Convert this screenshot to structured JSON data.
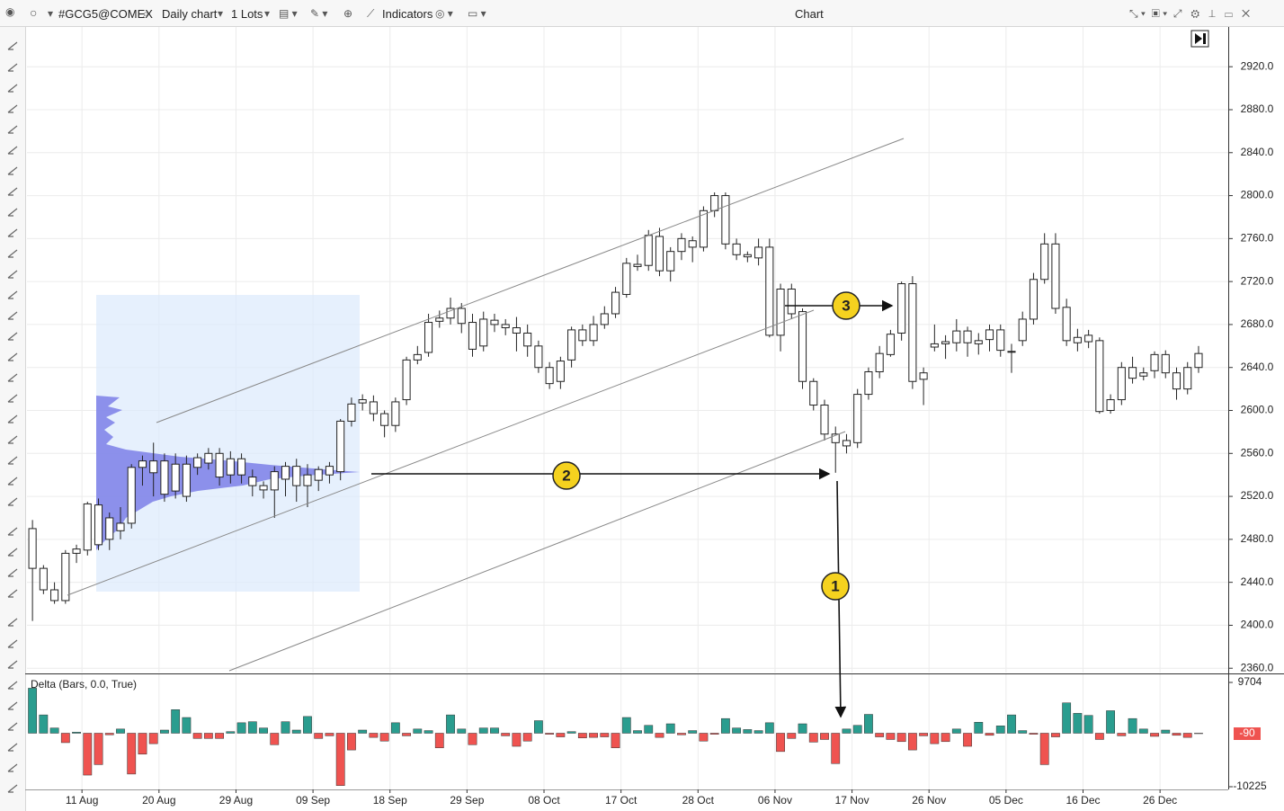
{
  "toolbar": {
    "symbol": "#GCG5@COMEX",
    "timeframe": "Daily chart",
    "lots": "1 Lots",
    "indicators": "Indicators",
    "window_title": "Chart"
  },
  "markers": [
    "1",
    "2",
    "3"
  ],
  "chart_data": [
    {
      "type": "candlestick",
      "open": [
        2490,
        2453,
        2433,
        2423,
        2467,
        2470,
        2512,
        2480,
        2495,
        2495,
        2547,
        2553,
        2553,
        2525,
        2550,
        2547,
        2551,
        2560,
        2540,
        2555,
        2538,
        2530,
        2526,
        2536,
        2548,
        2530,
        2535,
        2540,
        2543,
        2590,
        2607,
        2608,
        2597,
        2586,
        2610,
        2647,
        2654,
        2683,
        2686,
        2695,
        2682,
        2660,
        2684,
        2680,
        2677,
        2672,
        2660,
        2640,
        2627,
        2647,
        2675,
        2665,
        2680,
        2690,
        2708,
        2736,
        2735,
        2762,
        2730,
        2748,
        2758,
        2752,
        2786,
        2800,
        2755,
        2745,
        2742,
        2752,
        2670,
        2713,
        2692,
        2627,
        2605,
        2578,
        2567,
        2570,
        2615,
        2636,
        2652,
        2672,
        2718,
        2629,
        2659,
        2662,
        2663,
        2674,
        2662,
        2666,
        2675,
        2655,
        2665,
        2685,
        2722,
        2755,
        2696,
        2668,
        2664,
        2665,
        2600,
        2610,
        2640,
        2632,
        2637,
        2652,
        2635,
        2620,
        2640
      ],
      "high": [
        2498,
        2456,
        2440,
        2470,
        2475,
        2515,
        2518,
        2505,
        2510,
        2550,
        2558,
        2570,
        2560,
        2560,
        2558,
        2560,
        2565,
        2565,
        2562,
        2560,
        2545,
        2534,
        2548,
        2552,
        2555,
        2550,
        2548,
        2552,
        2592,
        2612,
        2615,
        2614,
        2600,
        2612,
        2650,
        2660,
        2690,
        2693,
        2705,
        2700,
        2690,
        2692,
        2690,
        2685,
        2687,
        2680,
        2665,
        2645,
        2650,
        2678,
        2680,
        2688,
        2697,
        2715,
        2742,
        2745,
        2768,
        2770,
        2752,
        2765,
        2762,
        2790,
        2803,
        2803,
        2760,
        2748,
        2760,
        2760,
        2718,
        2718,
        2695,
        2630,
        2610,
        2585,
        2578,
        2620,
        2640,
        2660,
        2675,
        2720,
        2725,
        2640,
        2680,
        2670,
        2685,
        2678,
        2672,
        2680,
        2680,
        2662,
        2692,
        2728,
        2765,
        2765,
        2704,
        2676,
        2675,
        2668,
        2615,
        2645,
        2650,
        2640,
        2655,
        2656,
        2640,
        2645,
        2660
      ],
      "low": [
        2404,
        2429,
        2420,
        2420,
        2458,
        2465,
        2470,
        2470,
        2480,
        2490,
        2530,
        2520,
        2515,
        2518,
        2515,
        2540,
        2545,
        2530,
        2532,
        2532,
        2520,
        2518,
        2500,
        2520,
        2515,
        2510,
        2525,
        2532,
        2535,
        2585,
        2600,
        2590,
        2575,
        2580,
        2605,
        2643,
        2650,
        2677,
        2680,
        2672,
        2650,
        2655,
        2673,
        2670,
        2655,
        2650,
        2635,
        2620,
        2620,
        2640,
        2660,
        2660,
        2676,
        2686,
        2705,
        2730,
        2730,
        2725,
        2720,
        2740,
        2738,
        2748,
        2780,
        2750,
        2740,
        2738,
        2735,
        2668,
        2655,
        2685,
        2620,
        2600,
        2572,
        2542,
        2560,
        2565,
        2610,
        2630,
        2650,
        2665,
        2620,
        2605,
        2655,
        2648,
        2655,
        2650,
        2652,
        2655,
        2650,
        2635,
        2660,
        2680,
        2718,
        2690,
        2660,
        2655,
        2658,
        2597,
        2597,
        2605,
        2625,
        2628,
        2630,
        2630,
        2610,
        2615,
        2635
      ],
      "close": [
        2453,
        2433,
        2423,
        2467,
        2471,
        2513,
        2475,
        2500,
        2488,
        2547,
        2553,
        2542,
        2522,
        2550,
        2520,
        2556,
        2560,
        2538,
        2555,
        2540,
        2530,
        2526,
        2543,
        2548,
        2530,
        2540,
        2545,
        2548,
        2590,
        2606,
        2610,
        2597,
        2586,
        2608,
        2647,
        2652,
        2682,
        2686,
        2695,
        2681,
        2657,
        2685,
        2680,
        2677,
        2672,
        2660,
        2640,
        2625,
        2646,
        2675,
        2665,
        2680,
        2690,
        2710,
        2737,
        2734,
        2763,
        2730,
        2748,
        2760,
        2752,
        2786,
        2800,
        2755,
        2745,
        2743,
        2752,
        2670,
        2713,
        2690,
        2627,
        2605,
        2578,
        2570,
        2572,
        2615,
        2636,
        2653,
        2671,
        2718,
        2627,
        2635,
        2662,
        2664,
        2674,
        2663,
        2665,
        2675,
        2656,
        2655,
        2685,
        2722,
        2755,
        2695,
        2665,
        2663,
        2670,
        2599,
        2610,
        2640,
        2630,
        2635,
        2652,
        2635,
        2620,
        2640,
        2653
      ],
      "color": "#ffffff",
      "edge_color": "#222222",
      "xlim": [
        -0.5,
        108.7
      ],
      "xticks": [
        {
          "value": 4.5,
          "label": "11 Aug"
        },
        {
          "value": 11.5,
          "label": "20 Aug"
        },
        {
          "value": 18.5,
          "label": "29 Aug"
        },
        {
          "value": 25.5,
          "label": "09 Sep"
        },
        {
          "value": 32.5,
          "label": "18 Sep"
        },
        {
          "value": 39.5,
          "label": "29 Sep"
        },
        {
          "value": 46.5,
          "label": "08 Oct"
        },
        {
          "value": 53.5,
          "label": "17 Oct"
        },
        {
          "value": 60.5,
          "label": "28 Oct"
        },
        {
          "value": 67.5,
          "label": "06 Nov"
        },
        {
          "value": 74.5,
          "label": "17 Nov"
        },
        {
          "value": 81.5,
          "label": "26 Nov"
        },
        {
          "value": 88.5,
          "label": "05 Dec"
        },
        {
          "value": 95.5,
          "label": "16 Dec"
        },
        {
          "value": 102.5,
          "label": "26 Dec"
        }
      ],
      "ylim": [
        2356,
        2957
      ],
      "yticks": [
        {
          "value": 2360,
          "label": "2360.0"
        },
        {
          "value": 2400,
          "label": "2400.0"
        },
        {
          "value": 2440,
          "label": "2440.0"
        },
        {
          "value": 2480,
          "label": "2480.0"
        },
        {
          "value": 2520,
          "label": "2520.0"
        },
        {
          "value": 2560,
          "label": "2560.0"
        },
        {
          "value": 2600,
          "label": "2600.0"
        },
        {
          "value": 2640,
          "label": "2640.0"
        },
        {
          "value": 2680,
          "label": "2680.0"
        },
        {
          "value": 2720,
          "label": "2720.0"
        },
        {
          "value": 2760,
          "label": "2760.0"
        },
        {
          "value": 2800,
          "label": "2800.0"
        },
        {
          "value": 2840,
          "label": "2840.0"
        },
        {
          "value": 2880,
          "label": "2880.0"
        },
        {
          "value": 2920,
          "label": "2920.0"
        }
      ],
      "grid": true
    },
    {
      "type": "bar",
      "title": "Delta (Bars, 0.0, True)",
      "values": [
        8600,
        3500,
        1000,
        -1800,
        200,
        -8000,
        -6000,
        -300,
        800,
        -7800,
        -4000,
        -2000,
        600,
        4500,
        3000,
        -1000,
        -1000,
        -1000,
        300,
        2000,
        2200,
        1000,
        -2200,
        2200,
        600,
        3200,
        -1000,
        -500,
        -10000,
        -3200,
        600,
        -800,
        -1500,
        2000,
        -500,
        800,
        500,
        -2800,
        3500,
        800,
        -2200,
        1000,
        1000,
        -500,
        -2500,
        -1500,
        2400,
        -200,
        -700,
        300,
        -900,
        -800,
        -700,
        -2800,
        3000,
        500,
        1500,
        -800,
        1800,
        -300,
        500,
        -1500,
        -200,
        2800,
        1000,
        700,
        500,
        2000,
        -3500,
        -1000,
        1800,
        -1700,
        -1200,
        -5800,
        800,
        1500,
        3600,
        -700,
        -1200,
        -1600,
        -3200,
        -500,
        -2000,
        -1600,
        800,
        -2500,
        2100,
        -400,
        1400,
        3500,
        500,
        -200,
        -6000,
        -700,
        5800,
        3800,
        3400,
        -1200,
        4300,
        -500,
        2800,
        800,
        -600,
        600,
        -400,
        -800,
        -90
      ],
      "colors": {
        "up": "#2a9d8f",
        "down": "#ef5350"
      },
      "ylim": [
        -10740,
        11250
      ],
      "yticks": [
        -10225,
        9704
      ]
    }
  ]
}
